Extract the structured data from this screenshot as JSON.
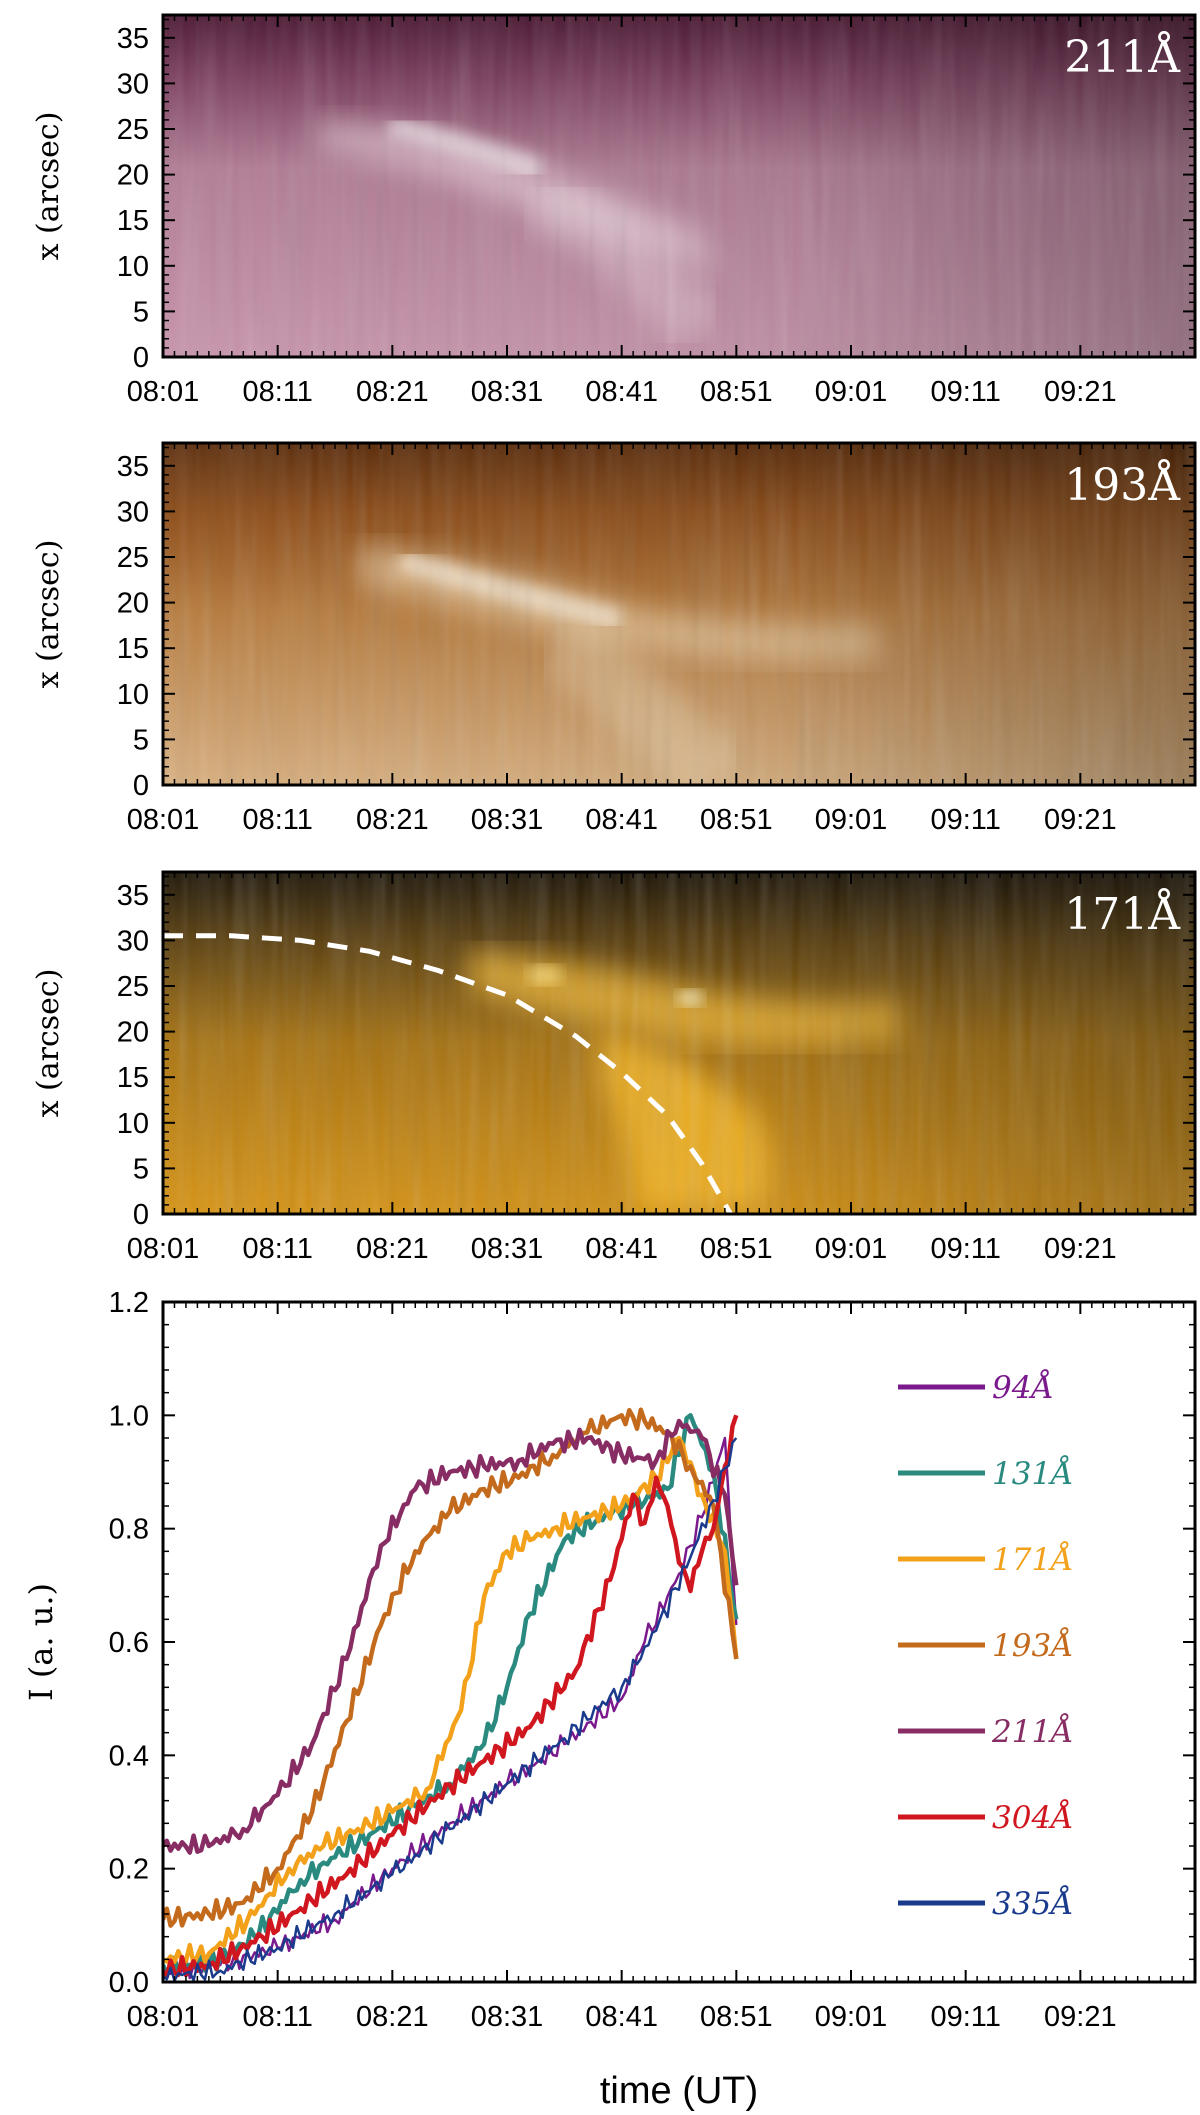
{
  "chart_data": [
    {
      "type": "heatmap",
      "band_label": "211Å",
      "ylabel": "x (arcsec)",
      "yticks": [
        0,
        5,
        10,
        15,
        20,
        25,
        30,
        35
      ],
      "ylim": [
        0,
        37.5
      ],
      "xticks": [
        "08:01",
        "08:11",
        "08:21",
        "08:31",
        "08:41",
        "08:51",
        "09:01",
        "09:11",
        "09:21"
      ],
      "colormap": [
        "#3d1128",
        "#7a3d5c",
        "#b27c96",
        "#dcb9c9",
        "#f7eef3"
      ]
    },
    {
      "type": "heatmap",
      "band_label": "193Å",
      "ylabel": "x (arcsec)",
      "yticks": [
        0,
        5,
        10,
        15,
        20,
        25,
        30,
        35
      ],
      "ylim": [
        0,
        37.5
      ],
      "xticks": [
        "08:01",
        "08:11",
        "08:21",
        "08:31",
        "08:41",
        "08:51",
        "09:01",
        "09:11",
        "09:21"
      ],
      "colormap": [
        "#4a2106",
        "#8c4b16",
        "#c08a50",
        "#e2bf8c",
        "#fbf0dd"
      ]
    },
    {
      "type": "heatmap",
      "band_label": "171Å",
      "ylabel": "x (arcsec)",
      "yticks": [
        0,
        5,
        10,
        15,
        20,
        25,
        30,
        35
      ],
      "ylim": [
        0,
        37.5
      ],
      "xticks": [
        "08:01",
        "08:11",
        "08:21",
        "08:31",
        "08:41",
        "08:51",
        "09:01",
        "09:11",
        "09:21"
      ],
      "colormap": [
        "#1a1405",
        "#6b4a0e",
        "#c38a12",
        "#f2b31a",
        "#ffe9a0"
      ],
      "fit_curve": {
        "style": "dashed",
        "color": "#ffffff",
        "t_min": [
          0,
          6,
          12,
          18,
          24,
          30,
          36,
          40,
          44,
          47,
          49.5
        ],
        "x_arcsec": [
          30.5,
          30.5,
          30.0,
          28.8,
          26.7,
          24.0,
          19.5,
          15.5,
          10.8,
          5.5,
          0.0
        ]
      }
    },
    {
      "type": "line",
      "ylabel": "I (a. u.)",
      "xlabel": "time (UT)",
      "ylim": [
        0.0,
        1.2
      ],
      "yticks": [
        0.0,
        0.2,
        0.4,
        0.6,
        0.8,
        1.0,
        1.2
      ],
      "xticks": [
        "08:01",
        "08:11",
        "08:21",
        "08:31",
        "08:41",
        "08:51",
        "09:01",
        "09:11",
        "09:21"
      ],
      "series": [
        {
          "name": "94Å",
          "color": "#7a1a8c",
          "t_min": [
            0,
            5,
            10,
            15,
            20,
            25,
            30,
            35,
            40,
            42,
            45,
            47,
            49,
            50
          ],
          "values": [
            0.02,
            0.03,
            0.06,
            0.11,
            0.2,
            0.28,
            0.35,
            0.42,
            0.5,
            0.6,
            0.72,
            0.82,
            0.96,
            0.63
          ]
        },
        {
          "name": "131Å",
          "color": "#2a8a80",
          "t_min": [
            0,
            4,
            8,
            12,
            15,
            18,
            22,
            25,
            28,
            30,
            32,
            35,
            38,
            41,
            44,
            46,
            48,
            50
          ],
          "values": [
            0.03,
            0.03,
            0.08,
            0.18,
            0.22,
            0.26,
            0.31,
            0.35,
            0.42,
            0.52,
            0.65,
            0.78,
            0.82,
            0.84,
            0.87,
            1.0,
            0.9,
            0.64
          ]
        },
        {
          "name": "171Å",
          "color": "#f3a11a",
          "t_min": [
            0,
            4,
            8,
            11,
            14,
            17,
            20,
            23,
            26,
            28,
            30,
            32,
            34,
            37,
            40,
            43,
            45,
            47,
            49,
            50
          ],
          "values": [
            0.04,
            0.05,
            0.12,
            0.2,
            0.24,
            0.27,
            0.3,
            0.34,
            0.48,
            0.68,
            0.76,
            0.78,
            0.8,
            0.82,
            0.84,
            0.89,
            0.96,
            0.86,
            0.76,
            0.57
          ]
        },
        {
          "name": "193Å",
          "color": "#c46a1c",
          "t_min": [
            0,
            4,
            7,
            10,
            13,
            16,
            19,
            22,
            25,
            28,
            31,
            34,
            37,
            40,
            42,
            44,
            46,
            48,
            50
          ],
          "values": [
            0.11,
            0.12,
            0.14,
            0.2,
            0.3,
            0.46,
            0.63,
            0.76,
            0.83,
            0.87,
            0.89,
            0.93,
            0.97,
            1.0,
            0.99,
            0.97,
            0.91,
            0.84,
            0.57
          ]
        },
        {
          "name": "211Å",
          "color": "#872d64",
          "t_min": [
            0,
            4,
            7,
            10,
            13,
            16,
            19,
            22,
            25,
            28,
            31,
            34,
            37,
            40,
            43,
            45,
            47,
            49,
            50
          ],
          "values": [
            0.24,
            0.24,
            0.27,
            0.33,
            0.42,
            0.57,
            0.77,
            0.87,
            0.9,
            0.91,
            0.92,
            0.95,
            0.96,
            0.93,
            0.92,
            0.99,
            0.96,
            0.86,
            0.7
          ]
        },
        {
          "name": "304Å",
          "color": "#d0161e",
          "t_min": [
            0,
            4,
            8,
            12,
            16,
            20,
            24,
            28,
            32,
            36,
            39,
            41,
            42,
            43,
            44,
            45,
            46,
            47,
            48,
            49,
            50
          ],
          "values": [
            0.02,
            0.03,
            0.07,
            0.13,
            0.19,
            0.26,
            0.33,
            0.39,
            0.45,
            0.55,
            0.71,
            0.86,
            0.81,
            0.89,
            0.84,
            0.74,
            0.69,
            0.76,
            0.8,
            0.91,
            1.0
          ]
        },
        {
          "name": "335Å",
          "color": "#1a3a8c",
          "t_min": [
            0,
            5,
            10,
            15,
            20,
            25,
            30,
            35,
            40,
            43,
            46,
            48,
            50
          ],
          "values": [
            0.01,
            0.02,
            0.06,
            0.12,
            0.19,
            0.27,
            0.35,
            0.43,
            0.52,
            0.62,
            0.75,
            0.85,
            0.96
          ]
        }
      ],
      "legend_position": "right"
    }
  ]
}
